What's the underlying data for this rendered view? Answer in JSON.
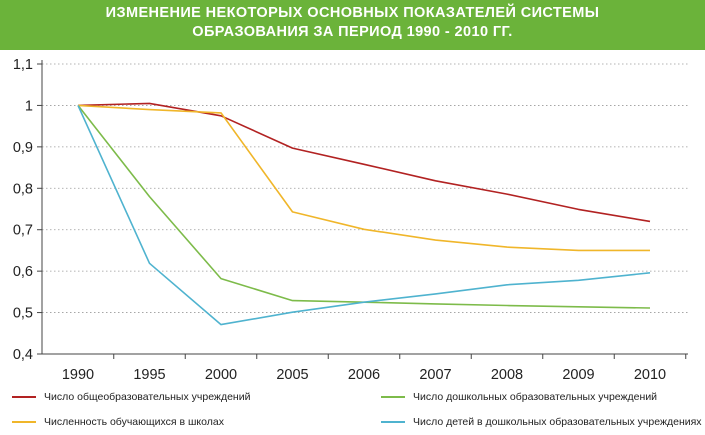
{
  "header": {
    "title_line1": "ИЗМЕНЕНИЕ  НЕКОТОРЫХ  ОСНОВНЫХ  ПОКАЗАТЕЛЕЙ  СИСТЕМЫ",
    "title_line2": "ОБРАЗОВАНИЯ  ЗА  ПЕРИОД  1990 - 2010 ГГ."
  },
  "colors": {
    "header_bg": "#6bb33a",
    "series_general_schools": "#b22222",
    "series_preschool_institutions": "#7dbb4a",
    "series_school_students": "#f0b62a",
    "series_preschool_children": "#4fb3cf"
  },
  "chart_data": {
    "type": "line",
    "title": "ИЗМЕНЕНИЕ НЕКОТОРЫХ ОСНОВНЫХ ПОКАЗАТЕЛЕЙ СИСТЕМЫ ОБРАЗОВАНИЯ ЗА ПЕРИОД 1990 - 2010 ГГ.",
    "xlabel": "",
    "ylabel": "",
    "categories": [
      "1990",
      "1995",
      "2000",
      "2005",
      "2006",
      "2007",
      "2008",
      "2009",
      "2010"
    ],
    "ylim": [
      0.4,
      1.1
    ],
    "yticks": [
      "0,4",
      "0,5",
      "0,6",
      "0,7",
      "0,8",
      "0,9",
      "1",
      "1,1"
    ],
    "grid": true,
    "legend_position": "bottom",
    "series": [
      {
        "name": "Число общеобразовательных учреждений",
        "color": "#b22222",
        "values": [
          1.0,
          1.005,
          0.975,
          0.897,
          0.858,
          0.818,
          0.786,
          0.749,
          0.72
        ]
      },
      {
        "name": "Число дошкольных образовательных учреждений",
        "color": "#7dbb4a",
        "values": [
          1.0,
          0.78,
          0.582,
          0.529,
          0.525,
          0.521,
          0.517,
          0.514,
          0.511
        ]
      },
      {
        "name": "Численность обучающихся в школах",
        "color": "#f0b62a",
        "values": [
          1.0,
          0.99,
          0.982,
          0.743,
          0.701,
          0.675,
          0.658,
          0.65,
          0.65
        ]
      },
      {
        "name": "Число детей в дошкольных образовательных учреждениях",
        "color": "#4fb3cf",
        "values": [
          1.0,
          0.619,
          0.471,
          0.501,
          0.525,
          0.545,
          0.567,
          0.578,
          0.596
        ]
      }
    ]
  }
}
